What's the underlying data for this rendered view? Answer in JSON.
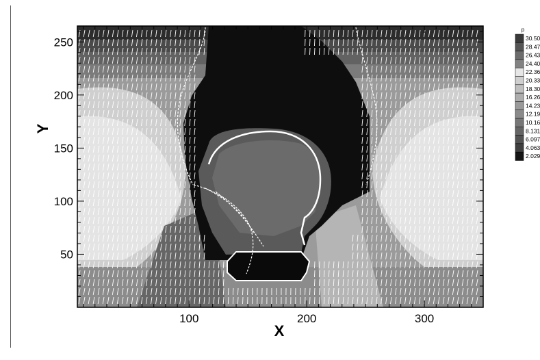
{
  "chart_data": {
    "type": "heatmap",
    "title": "",
    "xlabel": "X",
    "ylabel": "Y",
    "xlim": [
      5,
      350
    ],
    "ylim": [
      0,
      265
    ],
    "xticks": [
      100,
      200,
      300
    ],
    "yticks": [
      50,
      100,
      150,
      200,
      250
    ],
    "grid": false,
    "legend": {
      "title": "p",
      "placement": "right",
      "levels": [
        "30.5041",
        "28.4702",
        "26.4364",
        "24.4025",
        "22.3686",
        "20.3347",
        "18.3008",
        "16.2669",
        "14.2331",
        "12.1992",
        "10.1653",
        "8.13141",
        "6.09752",
        "4.06364",
        "2.02976"
      ],
      "colors": [
        "#3a3a3a",
        "#555555",
        "#6c6c6c",
        "#828282",
        "#e6e6e6",
        "#cfcfcf",
        "#bfbfbf",
        "#adadad",
        "#9a9a9a",
        "#8a8a8a",
        "#777777",
        "#656565",
        "#525252",
        "#3f3f3f",
        "#151515"
      ]
    },
    "overlay": "velocity vectors (white arrows)",
    "boundaries": [
      {
        "name": "body outline",
        "shape": "rounded contour"
      },
      {
        "name": "lower rectangle outline",
        "shape": "octagonal contour"
      }
    ]
  }
}
